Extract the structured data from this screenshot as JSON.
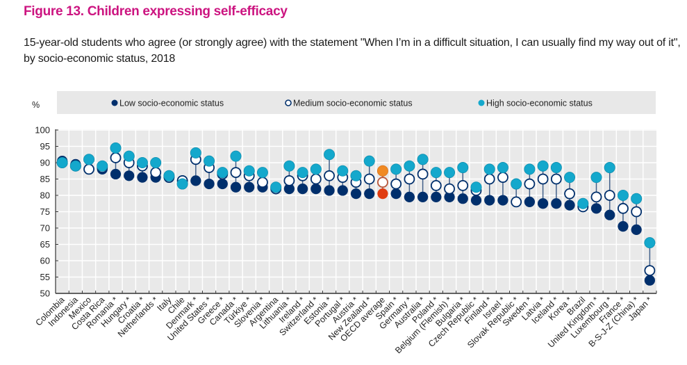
{
  "chart_data": {
    "type": "scatter",
    "subtype": "dot-range",
    "title": "Figure 13. Children expressing self-efficacy",
    "subtitle": "15-year-old students who agree (or strongly agree) with the statement \"When I’m in a difficult situation, I can usually find my way out of it\", by socio-economic status, 2018",
    "ylabel": "%",
    "xlabel": "",
    "ylim": [
      50,
      100
    ],
    "yticks": [
      100,
      95,
      90,
      85,
      80,
      75,
      70,
      65,
      60,
      55,
      50
    ],
    "grid": true,
    "legend_position": "top",
    "categories": [
      "Colombia",
      "Indonesia",
      "Mexico",
      "Costa Rica",
      "Romania *",
      "Hungary *",
      "Croatia *",
      "Netherlands *",
      "Italy",
      "Chile",
      "Denmark *",
      "United States *",
      "Greece *",
      "Canada *",
      "Türkiye *",
      "Slovenia *",
      "Argentina",
      "Lithuania *",
      "Ireland *",
      "Switzerland *",
      "Estonia *",
      "Portugal *",
      "Austria *",
      "New Zealand *",
      "OECD average",
      "Spain *",
      "Germany *",
      "Australia *",
      "Poland *",
      "Belgium (Flemish) *",
      "Bulgaria *",
      "Czech Republic *",
      "Finland *",
      "Israel *",
      "Slovak Republic *",
      "Sweden *",
      "Latvia *",
      "Iceland *",
      "Korea *",
      "Brazil",
      "United Kingdom *",
      "Luxembourg *",
      "France *",
      "B-S-J-Z (China) *",
      "Japan *"
    ],
    "highlight_category": "OECD average",
    "series": [
      {
        "name": "Low socio-economic status",
        "marker": "filled",
        "color": "#002f6c",
        "highlight_color": "#e03c10",
        "values": [
          90.5,
          89.5,
          88,
          88,
          86.5,
          86,
          85.5,
          85.5,
          85.5,
          84.5,
          84.5,
          83.5,
          83.5,
          82.5,
          82.5,
          82.5,
          82,
          82,
          82,
          82,
          81.5,
          81.5,
          80.5,
          80.5,
          80.5,
          80.5,
          79.5,
          79.5,
          79.5,
          79.5,
          79,
          78.5,
          78.5,
          78.5,
          78,
          78,
          77.5,
          77.5,
          77,
          77,
          76,
          74,
          70.5,
          69.5,
          54
        ]
      },
      {
        "name": "Medium socio-economic status",
        "marker": "hollow",
        "color": "#002f6c",
        "highlight_color": "#b8563a",
        "values": [
          90,
          89,
          88,
          88.5,
          91.5,
          90,
          89,
          87,
          85.5,
          84.5,
          91,
          88.5,
          86.5,
          87,
          86,
          84,
          82,
          84.5,
          86,
          85,
          86,
          85.5,
          84,
          85,
          84,
          83.5,
          85,
          86.5,
          83,
          82,
          83,
          81.5,
          85,
          85.5,
          78,
          83.5,
          85,
          85,
          80.5,
          76.5,
          79.5,
          80,
          76,
          75,
          57
        ]
      },
      {
        "name": "High socio-economic status",
        "marker": "filled",
        "color": "#14a8cc",
        "highlight_color": "#f08a24",
        "values": [
          90,
          89,
          91,
          89,
          94.5,
          92,
          90,
          90,
          86,
          83.5,
          93,
          90.5,
          87,
          92,
          87.5,
          87,
          82.5,
          89,
          87,
          88,
          92.5,
          87.5,
          86,
          90.5,
          87.5,
          88,
          89,
          91,
          87,
          87,
          88.5,
          82.5,
          88,
          88.5,
          83.5,
          88,
          89,
          88.5,
          85.5,
          77.5,
          85.5,
          88.5,
          80,
          79,
          65.5
        ]
      }
    ]
  }
}
